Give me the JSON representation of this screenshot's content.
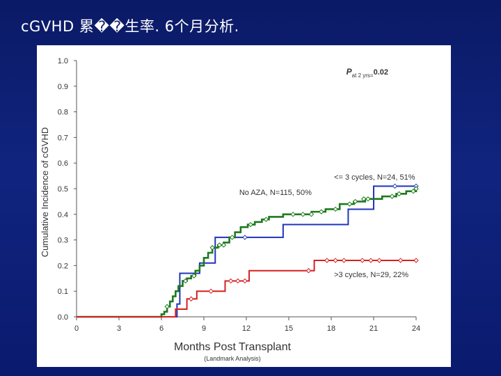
{
  "slide": {
    "title": "cGVHD 累��生率. 6个月分析."
  },
  "chart_data": {
    "type": "line",
    "title": "",
    "xlabel": "Months Post Transplant",
    "xlabel_sub": "(Landmark Analysis)",
    "ylabel": "Cumulative Incidence of cGVHD",
    "xlim": [
      0,
      24
    ],
    "ylim": [
      0,
      1.0
    ],
    "xticks": [
      0,
      3,
      6,
      9,
      12,
      15,
      18,
      21,
      24
    ],
    "yticks": [
      0.0,
      0.1,
      0.2,
      0.3,
      0.4,
      0.5,
      0.6,
      0.7,
      0.8,
      0.9,
      1.0
    ],
    "xtick_labels": [
      "0",
      "3",
      "6",
      "9",
      "12",
      "15",
      "18",
      "21",
      "24"
    ],
    "ytick_labels": [
      "0.0",
      "0.1",
      "0.2",
      "0.3",
      "0.4",
      "0.5",
      "0.6",
      "0.7",
      "0.8",
      "0.9",
      "1.0"
    ],
    "annotation": {
      "p_symbol": "P",
      "p_sub": "at 2 yrs",
      "p_eq": "=",
      "p_value": "0.02"
    },
    "series": [
      {
        "name": "<= 3 cycles, N=24, 51%",
        "color": "#1f35b8",
        "steps": [
          [
            0,
            0
          ],
          [
            7.1,
            0
          ],
          [
            7.1,
            0.05
          ],
          [
            7.3,
            0.05
          ],
          [
            7.3,
            0.17
          ],
          [
            8.7,
            0.17
          ],
          [
            8.7,
            0.21
          ],
          [
            9.8,
            0.21
          ],
          [
            9.8,
            0.31
          ],
          [
            14.6,
            0.31
          ],
          [
            14.6,
            0.36
          ],
          [
            19.2,
            0.36
          ],
          [
            19.2,
            0.42
          ],
          [
            21.0,
            0.42
          ],
          [
            21.0,
            0.51
          ],
          [
            24.0,
            0.51
          ]
        ],
        "censors": [
          [
            11.9,
            0.31
          ],
          [
            22.5,
            0.51
          ],
          [
            24.0,
            0.51
          ]
        ]
      },
      {
        "name": "No AZA, N=115, 50%",
        "color": "#1d7a1d",
        "steps": [
          [
            0,
            0
          ],
          [
            5.9,
            0
          ],
          [
            6.0,
            0.01
          ],
          [
            6.2,
            0.02
          ],
          [
            6.4,
            0.04
          ],
          [
            6.6,
            0.06
          ],
          [
            6.8,
            0.08
          ],
          [
            7.0,
            0.1
          ],
          [
            7.2,
            0.12
          ],
          [
            7.5,
            0.14
          ],
          [
            7.8,
            0.15
          ],
          [
            8.1,
            0.16
          ],
          [
            8.4,
            0.18
          ],
          [
            8.7,
            0.2
          ],
          [
            9.0,
            0.23
          ],
          [
            9.3,
            0.25
          ],
          [
            9.6,
            0.27
          ],
          [
            10.0,
            0.28
          ],
          [
            10.4,
            0.29
          ],
          [
            10.8,
            0.31
          ],
          [
            11.2,
            0.33
          ],
          [
            11.6,
            0.35
          ],
          [
            12.1,
            0.36
          ],
          [
            12.6,
            0.37
          ],
          [
            13.1,
            0.38
          ],
          [
            13.6,
            0.39
          ],
          [
            14.6,
            0.4
          ],
          [
            16.6,
            0.41
          ],
          [
            17.6,
            0.42
          ],
          [
            18.6,
            0.44
          ],
          [
            19.6,
            0.45
          ],
          [
            20.4,
            0.46
          ],
          [
            21.6,
            0.47
          ],
          [
            22.6,
            0.48
          ],
          [
            23.3,
            0.49
          ],
          [
            24.0,
            0.5
          ]
        ],
        "censors": [
          [
            6.4,
            0.04
          ],
          [
            7.7,
            0.14
          ],
          [
            8.3,
            0.16
          ],
          [
            9.6,
            0.27
          ],
          [
            10.1,
            0.28
          ],
          [
            10.4,
            0.28
          ],
          [
            11.0,
            0.31
          ],
          [
            12.3,
            0.36
          ],
          [
            13.4,
            0.38
          ],
          [
            15.3,
            0.4
          ],
          [
            16.0,
            0.4
          ],
          [
            16.6,
            0.4
          ],
          [
            17.3,
            0.41
          ],
          [
            18.3,
            0.42
          ],
          [
            19.3,
            0.44
          ],
          [
            19.7,
            0.45
          ],
          [
            20.3,
            0.46
          ],
          [
            20.6,
            0.46
          ],
          [
            22.3,
            0.47
          ],
          [
            22.8,
            0.48
          ],
          [
            23.8,
            0.49
          ],
          [
            24.0,
            0.5
          ]
        ]
      },
      {
        "name": ">3 cycles, N=29, 22%",
        "color": "#d42020",
        "steps": [
          [
            0,
            0
          ],
          [
            7.0,
            0
          ],
          [
            7.0,
            0.03
          ],
          [
            7.8,
            0.03
          ],
          [
            7.8,
            0.07
          ],
          [
            8.5,
            0.07
          ],
          [
            8.5,
            0.1
          ],
          [
            10.5,
            0.1
          ],
          [
            10.5,
            0.14
          ],
          [
            12.2,
            0.14
          ],
          [
            12.2,
            0.18
          ],
          [
            16.8,
            0.18
          ],
          [
            16.8,
            0.22
          ],
          [
            24.0,
            0.22
          ]
        ],
        "censors": [
          [
            8.1,
            0.07
          ],
          [
            9.5,
            0.1
          ],
          [
            10.9,
            0.14
          ],
          [
            11.4,
            0.14
          ],
          [
            11.9,
            0.14
          ],
          [
            16.4,
            0.18
          ],
          [
            17.7,
            0.22
          ],
          [
            18.3,
            0.22
          ],
          [
            18.9,
            0.22
          ],
          [
            20.2,
            0.22
          ],
          [
            20.8,
            0.22
          ],
          [
            21.4,
            0.22
          ],
          [
            22.9,
            0.22
          ],
          [
            24.0,
            0.22
          ]
        ]
      }
    ],
    "labels": [
      {
        "text": "<= 3 cycles, N=24, 51%",
        "x": 18.2,
        "y": 0.535,
        "anchor": "start"
      },
      {
        "text": "No AZA, N=115, 50%",
        "x": 11.5,
        "y": 0.475,
        "anchor": "start"
      },
      {
        "text": ">3 cycles, N=29, 22%",
        "x": 18.2,
        "y": 0.155,
        "anchor": "start"
      }
    ]
  }
}
